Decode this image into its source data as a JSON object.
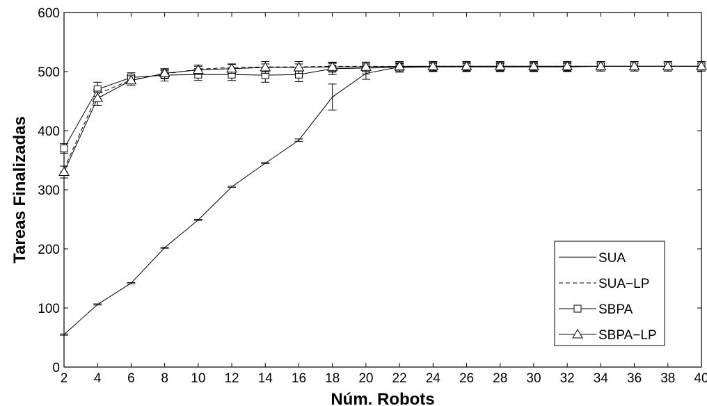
{
  "chart_data": {
    "type": "line",
    "xlabel": "Núm. Robots",
    "ylabel": "Tareas Finalizadas",
    "xlim": [
      2,
      40
    ],
    "ylim": [
      0,
      600
    ],
    "x_ticks": [
      "2",
      "4",
      "6",
      "8",
      "10",
      "12",
      "14",
      "16",
      "18",
      "20",
      "22",
      "24",
      "26",
      "28",
      "30",
      "32",
      "34",
      "36",
      "38",
      "40"
    ],
    "y_ticks": [
      "0",
      "100",
      "200",
      "300",
      "400",
      "500",
      "600"
    ],
    "grid": false,
    "legend_position": "bottom-right",
    "x": [
      2,
      4,
      6,
      8,
      10,
      12,
      14,
      16,
      18,
      20,
      22,
      24,
      26,
      28,
      30,
      32,
      34,
      36,
      38,
      40
    ],
    "series": [
      {
        "name": "SUA",
        "line_style": "solid",
        "marker": "none",
        "values": [
          55,
          106,
          142,
          202,
          249,
          305,
          345,
          384,
          457,
          497,
          508,
          509,
          509,
          509,
          509,
          509,
          509,
          509,
          509,
          509
        ],
        "errors": [
          1,
          1,
          1,
          1,
          1,
          1,
          1,
          2,
          22,
          10,
          6,
          5,
          5,
          5,
          5,
          5,
          5,
          5,
          5,
          5
        ]
      },
      {
        "name": "SUA−LP",
        "line_style": "dashed",
        "marker": "none",
        "values": [
          335,
          462,
          486,
          496,
          504,
          507,
          508,
          508,
          509,
          509,
          509,
          509,
          509,
          509,
          509,
          509,
          509,
          509,
          509,
          509
        ],
        "errors": [
          5,
          8,
          6,
          6,
          5,
          5,
          5,
          5,
          5,
          5,
          5,
          5,
          5,
          5,
          5,
          5,
          5,
          5,
          5,
          5
        ]
      },
      {
        "name": "SBPA",
        "line_style": "solid",
        "marker": "square",
        "values": [
          370,
          470,
          490,
          494,
          495,
          495,
          494,
          495,
          505,
          506,
          507,
          508,
          508,
          508,
          508,
          508,
          509,
          509,
          509,
          509
        ],
        "errors": [
          8,
          12,
          8,
          10,
          10,
          10,
          12,
          12,
          10,
          10,
          8,
          8,
          8,
          8,
          8,
          8,
          8,
          8,
          8,
          8
        ]
      },
      {
        "name": "SBPA−LP",
        "line_style": "solid",
        "marker": "triangle",
        "values": [
          330,
          455,
          485,
          497,
          503,
          505,
          507,
          507,
          508,
          508,
          509,
          509,
          509,
          509,
          509,
          509,
          509,
          509,
          509,
          509
        ],
        "errors": [
          10,
          12,
          8,
          8,
          8,
          8,
          10,
          10,
          8,
          8,
          8,
          8,
          8,
          8,
          8,
          8,
          8,
          8,
          8,
          8
        ]
      }
    ]
  }
}
